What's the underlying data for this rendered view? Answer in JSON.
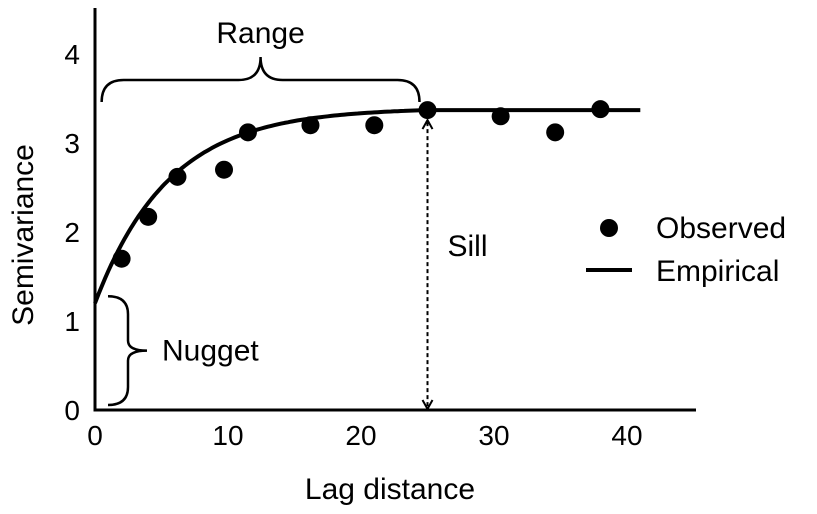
{
  "chart_data": {
    "type": "scatter",
    "title": "",
    "xlabel": "Lag distance",
    "ylabel": "Semivariance",
    "xlim": [
      0,
      45
    ],
    "ylim": [
      0,
      4.5
    ],
    "xticks": [
      0,
      10,
      20,
      30,
      40
    ],
    "yticks": [
      0,
      1,
      2,
      3,
      4
    ],
    "grid": false,
    "legend_position": "right",
    "series": [
      {
        "name": "Observed",
        "kind": "points",
        "x": [
          2,
          4,
          6.2,
          9.7,
          11.5,
          16.2,
          21,
          25,
          30.5,
          34.6,
          38
        ],
        "y": [
          1.7,
          2.17,
          2.62,
          2.7,
          3.12,
          3.2,
          3.2,
          3.37,
          3.3,
          3.12,
          3.38
        ]
      },
      {
        "name": "Empirical",
        "kind": "line",
        "model": "saturating curve rising from the nugget to the sill at the range, then flat",
        "nugget": 1.2,
        "sill": 3.37,
        "range": 25,
        "x_end": 41
      }
    ],
    "annotations": {
      "range_label": "Range",
      "sill_label": "Sill",
      "nugget_label": "Nugget"
    }
  },
  "colors": {
    "ink": "#000000",
    "background": "#ffffff"
  }
}
